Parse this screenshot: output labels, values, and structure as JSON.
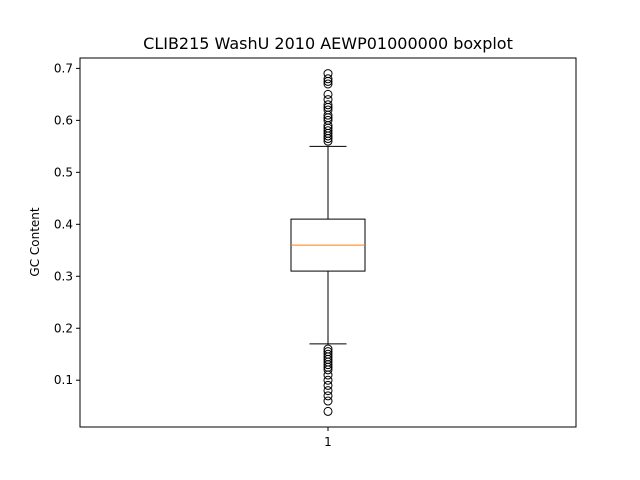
{
  "chart_data": {
    "type": "boxplot",
    "title": "CLIB215 WashU 2010 AEWP01000000 boxplot",
    "xlabel": "",
    "ylabel": "GC Content",
    "ylim": [
      0.01,
      0.72
    ],
    "yticks": [
      "0.1",
      "0.2",
      "0.3",
      "0.4",
      "0.5",
      "0.6",
      "0.7"
    ],
    "categories": [
      "1"
    ],
    "grid": false,
    "series": [
      {
        "category": "1",
        "whisker_low": 0.17,
        "q1": 0.31,
        "median": 0.36,
        "q3": 0.41,
        "whisker_high": 0.55,
        "outliers_high": [
          0.56,
          0.565,
          0.57,
          0.575,
          0.58,
          0.585,
          0.59,
          0.6,
          0.605,
          0.61,
          0.62,
          0.625,
          0.63,
          0.64,
          0.65,
          0.67,
          0.675,
          0.68,
          0.69
        ],
        "outliers_low": [
          0.16,
          0.155,
          0.15,
          0.145,
          0.14,
          0.135,
          0.13,
          0.125,
          0.12,
          0.11,
          0.1,
          0.09,
          0.08,
          0.07,
          0.06,
          0.04
        ]
      }
    ],
    "colors": {
      "box": "#000000",
      "median": "#ff7f0e",
      "outlier": "#000000"
    }
  }
}
